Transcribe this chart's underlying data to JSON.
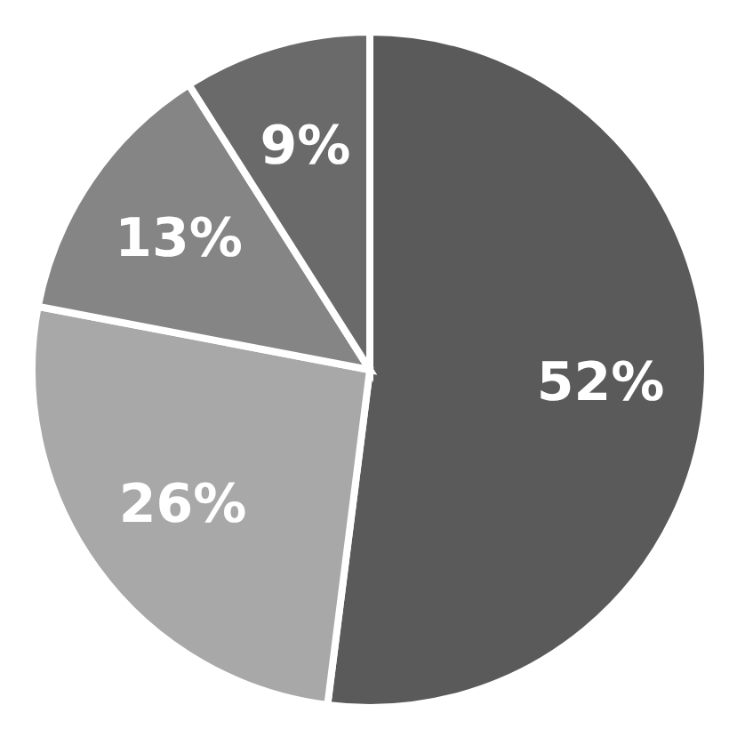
{
  "chart_data": {
    "type": "pie",
    "categories": [
      null,
      null,
      null,
      null
    ],
    "values": [
      52,
      26,
      13,
      9
    ],
    "colors": [
      "#5a5a5a",
      "#a8a8a8",
      "#858585",
      "#6a6a6a"
    ],
    "value_labels": [
      "52%",
      "26%",
      "13%",
      "9%"
    ],
    "legend": false
  }
}
